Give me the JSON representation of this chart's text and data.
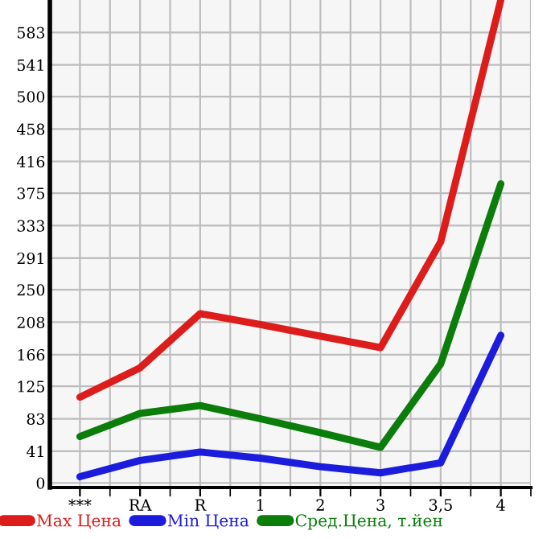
{
  "chart_data": {
    "type": "line",
    "categories": [
      "***",
      "RA",
      "R",
      "1",
      "2",
      "3",
      "3,5",
      "4"
    ],
    "series": [
      {
        "name": "Max Цена",
        "color": "#dd1c1c",
        "values": [
          111,
          149,
          219,
          205,
          190,
          175,
          312,
          625
        ]
      },
      {
        "name": "Min Цена",
        "color": "#1c1cdd",
        "values": [
          8,
          29,
          40,
          32,
          21,
          13,
          26,
          191
        ]
      },
      {
        "name": "Сред.Цена, т.йен",
        "color": "#0a7d0a",
        "values": [
          60,
          90,
          100,
          83,
          65,
          46,
          154,
          387
        ]
      }
    ],
    "ylim": [
      -6,
      625
    ],
    "yticks": [
      0,
      41,
      83,
      125,
      166,
      208,
      250,
      291,
      333,
      375,
      416,
      458,
      500,
      541,
      583
    ],
    "grid": true,
    "legend": "bottom",
    "marker": "none",
    "line_style": "solid"
  }
}
